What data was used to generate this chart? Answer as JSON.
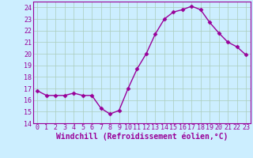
{
  "x": [
    0,
    1,
    2,
    3,
    4,
    5,
    6,
    7,
    8,
    9,
    10,
    11,
    12,
    13,
    14,
    15,
    16,
    17,
    18,
    19,
    20,
    21,
    22,
    23
  ],
  "y": [
    16.8,
    16.4,
    16.4,
    16.4,
    16.6,
    16.4,
    16.4,
    15.3,
    14.8,
    15.1,
    17.0,
    18.7,
    20.0,
    21.7,
    23.0,
    23.6,
    23.8,
    24.1,
    23.8,
    22.7,
    21.8,
    21.0,
    20.6,
    19.9
  ],
  "line_color": "#990099",
  "marker": "D",
  "markersize": 2.5,
  "linewidth": 1.0,
  "bg_color": "#cceeff",
  "grid_color": "#aaccbb",
  "xlabel": "Windchill (Refroidissement éolien,°C)",
  "xlabel_color": "#990099",
  "xlabel_fontsize": 7,
  "tick_color": "#990099",
  "tick_fontsize": 6,
  "ylim": [
    14,
    24.5
  ],
  "yticks": [
    14,
    15,
    16,
    17,
    18,
    19,
    20,
    21,
    22,
    23,
    24
  ],
  "xticks": [
    0,
    1,
    2,
    3,
    4,
    5,
    6,
    7,
    8,
    9,
    10,
    11,
    12,
    13,
    14,
    15,
    16,
    17,
    18,
    19,
    20,
    21,
    22,
    23
  ],
  "xlim": [
    -0.5,
    23.5
  ]
}
